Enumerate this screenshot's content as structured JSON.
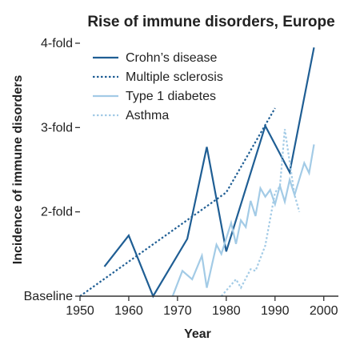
{
  "chart_data": {
    "type": "line",
    "title": "Rise of immune disorders, Europe",
    "xlabel": "Year",
    "ylabel": "Incidence of immune disorders",
    "xlim": [
      1950,
      2003
    ],
    "ylim": [
      0,
      3
    ],
    "x_ticks": [
      1950,
      1960,
      1970,
      1980,
      1990,
      2000
    ],
    "y_ticks": [
      {
        "value": 0,
        "label": "Baseline"
      },
      {
        "value": 1,
        "label": "2-fold"
      },
      {
        "value": 2,
        "label": "3-fold"
      },
      {
        "value": 3,
        "label": "4-fold"
      }
    ],
    "grid": false,
    "legend_position": "top-left",
    "series": [
      {
        "name": "Crohn’s disease",
        "style": "solid",
        "color": "#1f5e94",
        "points": [
          [
            1955,
            0.35
          ],
          [
            1960,
            0.72
          ],
          [
            1965,
            0.0
          ],
          [
            1972,
            0.68
          ],
          [
            1976,
            1.77
          ],
          [
            1980,
            0.53
          ],
          [
            1988,
            2.02
          ],
          [
            1993,
            1.47
          ],
          [
            1998,
            2.95
          ]
        ]
      },
      {
        "name": "Multiple sclerosis",
        "style": "dotted",
        "color": "#1f5e94",
        "points": [
          [
            1950,
            0.0
          ],
          [
            1980,
            1.23
          ],
          [
            1990,
            2.23
          ]
        ]
      },
      {
        "name": "Type 1 diabetes",
        "style": "solid",
        "color": "#a3cbe6",
        "points": [
          [
            1969,
            0.0
          ],
          [
            1971,
            0.3
          ],
          [
            1973,
            0.2
          ],
          [
            1975,
            0.48
          ],
          [
            1976,
            0.1
          ],
          [
            1978,
            0.61
          ],
          [
            1979,
            0.5
          ],
          [
            1981,
            0.87
          ],
          [
            1982,
            0.62
          ],
          [
            1983,
            0.9
          ],
          [
            1984,
            0.82
          ],
          [
            1985,
            1.13
          ],
          [
            1986,
            0.95
          ],
          [
            1987,
            1.28
          ],
          [
            1988,
            1.18
          ],
          [
            1989,
            1.26
          ],
          [
            1990,
            1.09
          ],
          [
            1991,
            1.31
          ],
          [
            1992,
            1.12
          ],
          [
            1993,
            1.38
          ],
          [
            1994,
            1.2
          ],
          [
            1996,
            1.58
          ],
          [
            1997,
            1.46
          ],
          [
            1998,
            1.8
          ]
        ]
      },
      {
        "name": "Asthma",
        "style": "dotted",
        "color": "#a3cbe6",
        "points": [
          [
            1979,
            0.0
          ],
          [
            1982,
            0.2
          ],
          [
            1983,
            0.1
          ],
          [
            1985,
            0.32
          ],
          [
            1986,
            0.3
          ],
          [
            1988,
            0.6
          ],
          [
            1990,
            1.23
          ],
          [
            1991,
            1.3
          ],
          [
            1992,
            1.98
          ],
          [
            1994,
            1.2
          ],
          [
            1995,
            1.0
          ]
        ]
      }
    ]
  }
}
